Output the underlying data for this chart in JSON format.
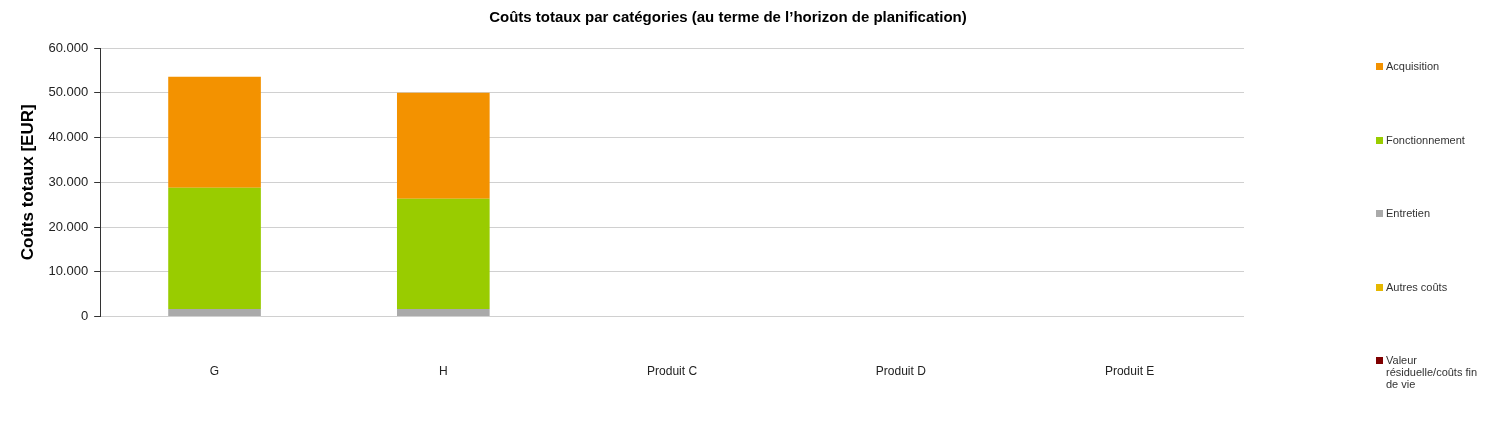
{
  "chart_data": {
    "type": "bar",
    "title": "Coûts totaux par catégories (au terme de l’horizon de planification)",
    "ylabel": "Coûts totaux [EUR]",
    "categories": [
      "G",
      "H",
      "Produit C",
      "Produit D",
      "Produit E"
    ],
    "stacked": true,
    "series": [
      {
        "name": "Valeur résiduelle/coûts fin de vie",
        "color": "#7f0000",
        "values": [
          0,
          0,
          null,
          null,
          null
        ]
      },
      {
        "name": "Autres coûts",
        "color": "#e6b800",
        "values": [
          0,
          0,
          null,
          null,
          null
        ]
      },
      {
        "name": "Entretien",
        "color": "#aaaaaa",
        "values": [
          1700,
          1700,
          null,
          null,
          null
        ]
      },
      {
        "name": "Fonctionnement",
        "color": "#99cc00",
        "values": [
          27100,
          24600,
          null,
          null,
          null
        ]
      },
      {
        "name": "Acquisition",
        "color": "#f39200",
        "values": [
          24800,
          23700,
          null,
          null,
          null
        ]
      }
    ],
    "ylim": [
      0,
      60000
    ],
    "yticks": [
      0,
      {
        "value": 10000,
        "label": "10.000"
      },
      {
        "value": 20000,
        "label": "20.000"
      },
      {
        "value": 30000,
        "label": "30.000"
      },
      {
        "value": 40000,
        "label": "40.000"
      },
      {
        "value": 50000,
        "label": "50.000"
      },
      {
        "value": 60000,
        "label": "60.000"
      }
    ],
    "grid": "y",
    "legend": "right"
  }
}
